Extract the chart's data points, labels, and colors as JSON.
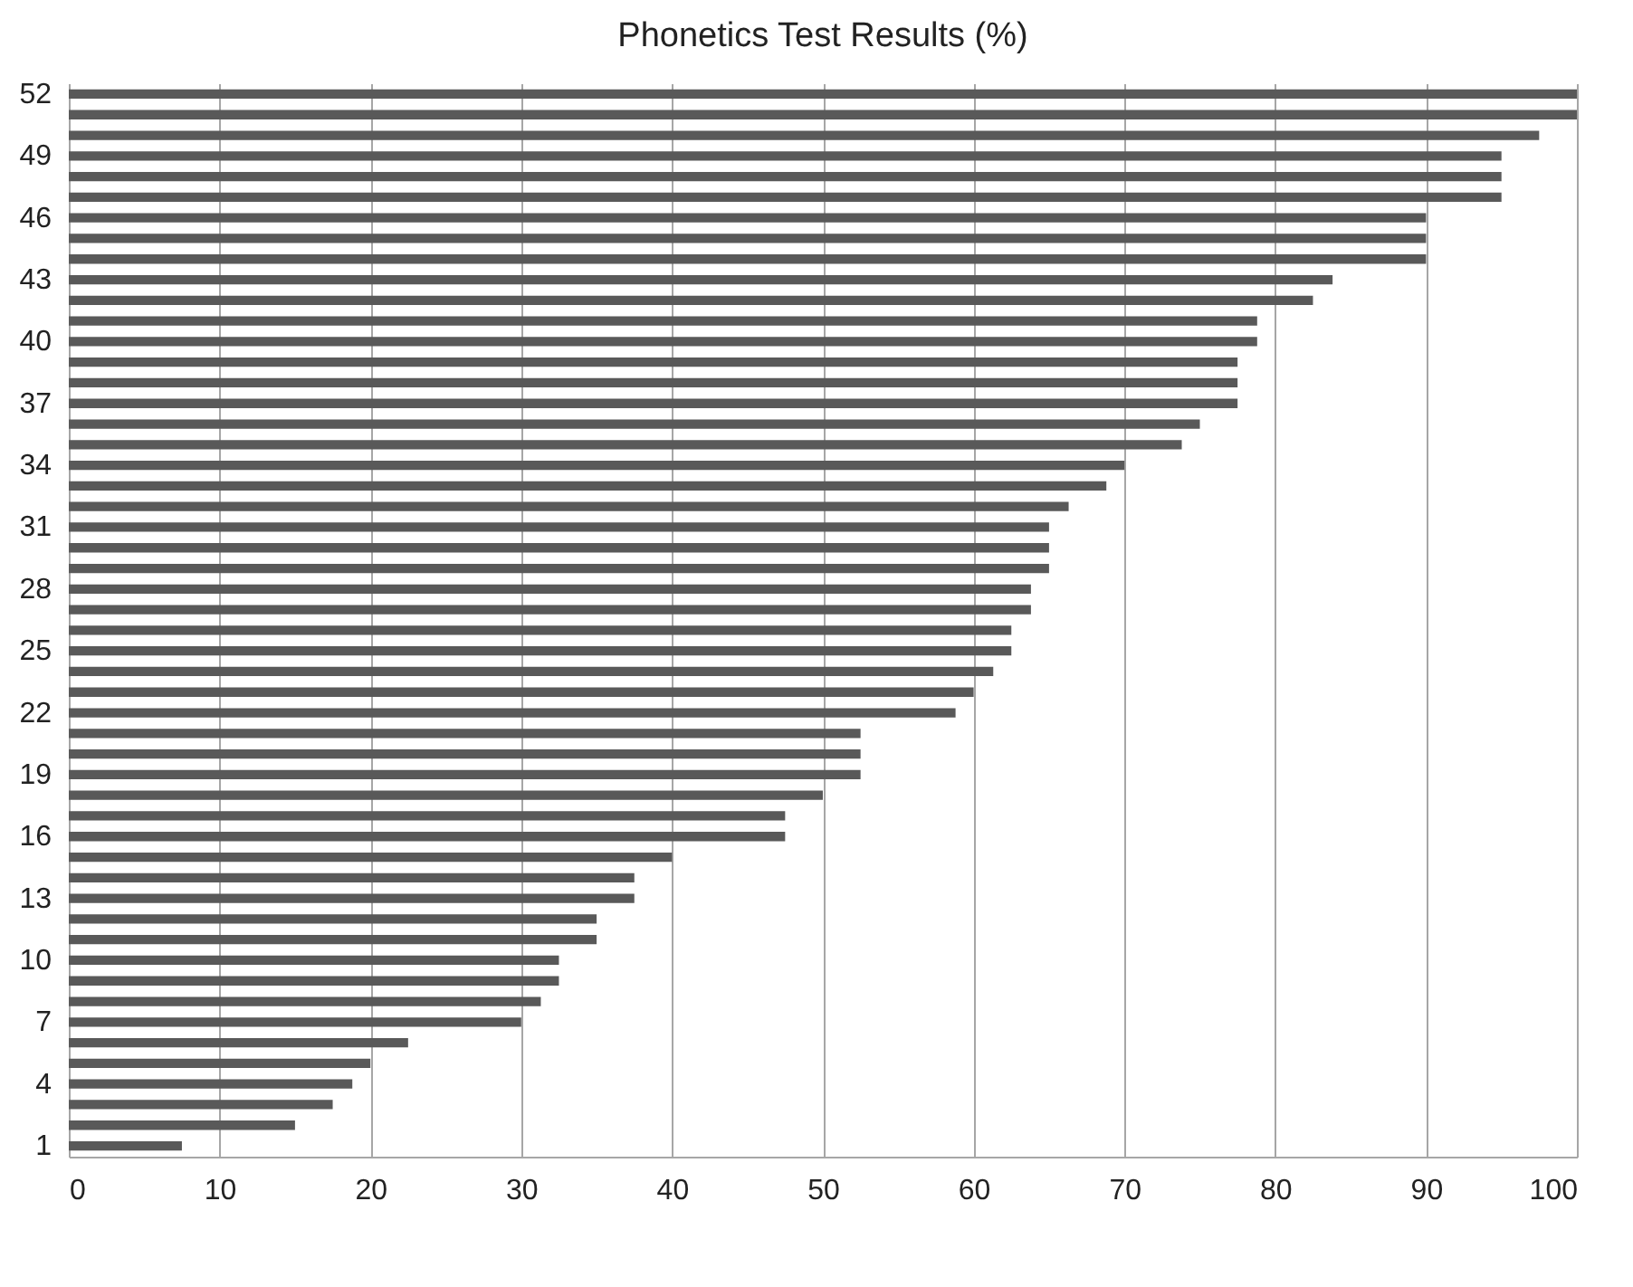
{
  "chart_data": {
    "type": "bar",
    "orientation": "horizontal",
    "title": "Phonetics Test Results (%)",
    "categories": [
      "52",
      null,
      null,
      "49",
      null,
      null,
      "46",
      null,
      null,
      "43",
      null,
      null,
      "40",
      null,
      null,
      "37",
      null,
      null,
      "34",
      null,
      null,
      "31",
      null,
      null,
      "28",
      null,
      null,
      "25",
      null,
      null,
      "22",
      null,
      null,
      "19",
      null,
      null,
      "16",
      null,
      null,
      "13",
      null,
      null,
      "10",
      null,
      null,
      "7",
      null,
      null,
      "4",
      null,
      null,
      "1"
    ],
    "values": [
      100,
      100,
      97.5,
      95,
      95,
      95,
      90,
      90,
      90,
      83.8,
      82.5,
      78.8,
      78.8,
      77.5,
      77.5,
      77.5,
      75,
      73.8,
      70,
      68.8,
      66.3,
      65,
      65,
      65,
      63.8,
      63.8,
      62.5,
      62.5,
      61.3,
      60,
      58.8,
      52.5,
      52.5,
      52.5,
      50,
      47.5,
      47.5,
      40,
      37.5,
      37.5,
      35,
      35,
      32.5,
      32.5,
      31.3,
      30,
      22.5,
      20,
      18.8,
      17.5,
      15,
      7.5
    ],
    "color": "#595959",
    "xlim": [
      0,
      100
    ],
    "xticks": [
      0,
      10,
      20,
      30,
      40,
      50,
      60,
      70,
      80,
      90,
      100
    ],
    "grid": "x"
  }
}
